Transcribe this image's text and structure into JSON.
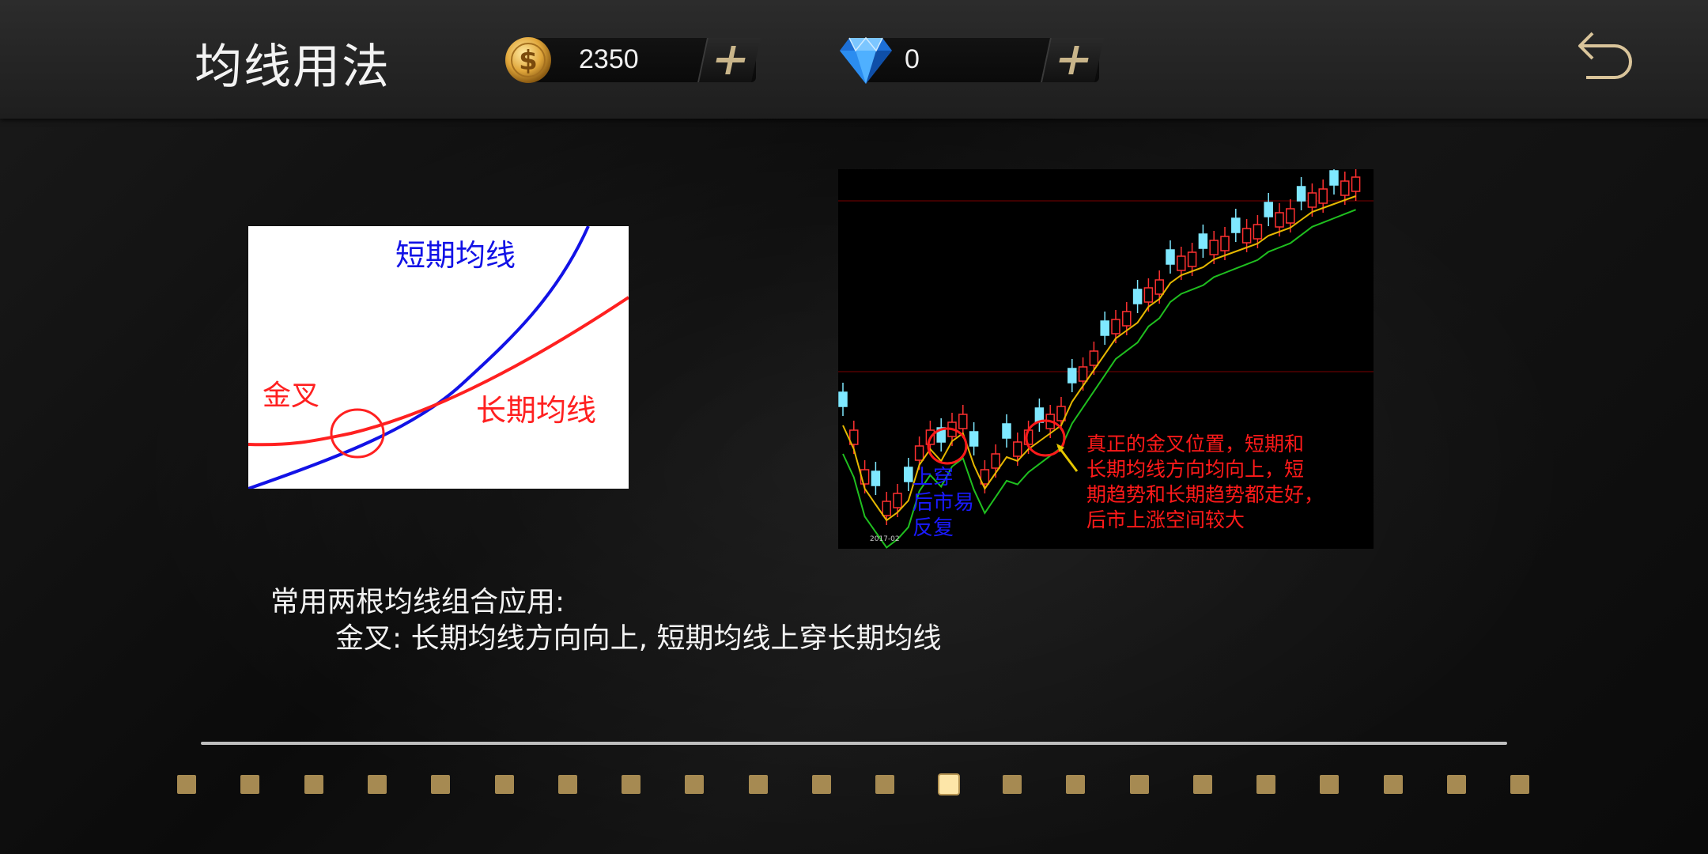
{
  "header": {
    "title": "均线用法",
    "coins": "2350",
    "gems": "0"
  },
  "left_figure": {
    "short_label": "短期均线",
    "long_label": "长期均线",
    "cross_label": "金叉"
  },
  "right_figure": {
    "blue_note": [
      "上穿",
      "后市易",
      "反复"
    ],
    "red_note": [
      "真正的金叉位置，短期和",
      "长期均线方向均向上，短",
      "期趋势和长期趋势都走好，",
      "后市上涨空间较大"
    ],
    "date_label": "2017-02"
  },
  "content": {
    "line1": "常用两根均线组合应用:",
    "line2": "金叉: 长期均线方向向上, 短期均线上穿长期均线"
  },
  "pagination": {
    "total": 22,
    "active_index": 12
  },
  "colors": {
    "accent_gold": "#a68a52",
    "active_dot": "#fde6a8",
    "short_ma": "#0000ff",
    "long_ma": "#ff1a1a"
  }
}
